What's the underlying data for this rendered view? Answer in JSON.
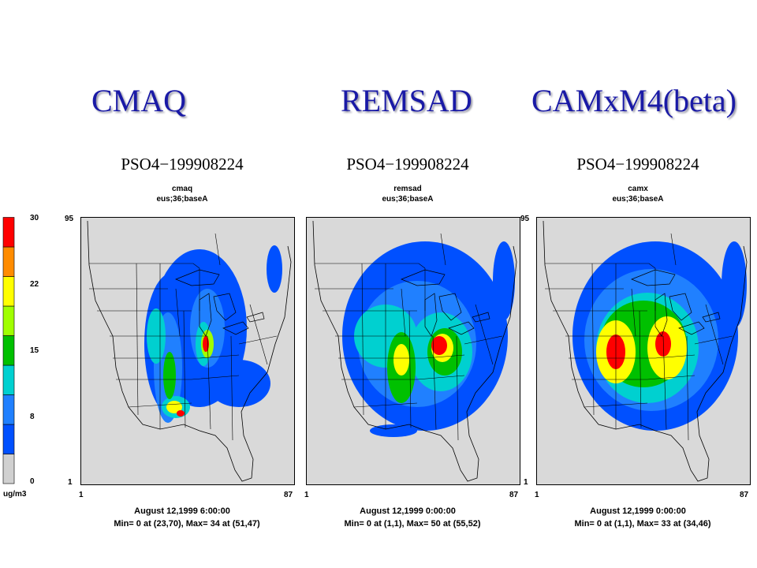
{
  "headings": [
    "CMAQ",
    "REMSAD",
    "CAMxM4(beta)"
  ],
  "legend": {
    "ticks": [
      "30",
      "22",
      "15",
      "8",
      "0"
    ],
    "units": "ug/m3",
    "colors": [
      "#d0d0d0",
      "#0050ff",
      "#2080ff",
      "#00d0d0",
      "#00c000",
      "#a0ff00",
      "#ffff00",
      "#ff8c00",
      "#ff0000"
    ]
  },
  "panels": [
    {
      "title": "PSO4−199908224",
      "model": "cmaq",
      "run": "eus;36;baseA",
      "y_top": "95",
      "y_bottom": "1",
      "x_left": "1",
      "x_right": "87",
      "date": "August 12,1999 6:00:00",
      "minmax": "Min=      0 at (23,70), Max=      34 at (51,47)"
    },
    {
      "title": "PSO4−199908224",
      "model": "remsad",
      "run": "eus;36;baseA",
      "y_top": "",
      "y_bottom": "",
      "x_left": "1",
      "x_right": "87",
      "date": "August 12,1999 0:00:00",
      "minmax": "Min=      0 at (1,1), Max=      50 at (55,52)"
    },
    {
      "title": "PSO4−199908224",
      "model": "camx",
      "run": "eus;36;baseA",
      "y_top": "95",
      "y_bottom": "1",
      "x_left": "1",
      "x_right": "87",
      "date": "August 12,1999 0:00:00",
      "minmax": "Min=      0 at (1,1), Max=      33 at (34,46)"
    }
  ],
  "chart_data": [
    {
      "type": "heatmap",
      "title": "PSO4−199908224",
      "subtitle": "cmaq eus;36;baseA",
      "x_range": [
        1,
        87
      ],
      "y_range": [
        1,
        95
      ],
      "color_range": [
        0,
        30
      ],
      "units": "ug/m3",
      "time": "August 12,1999 6:00:00",
      "min": {
        "value": 0,
        "cell": [
          23,
          70
        ]
      },
      "max": {
        "value": 34,
        "cell": [
          51,
          47
        ]
      }
    },
    {
      "type": "heatmap",
      "title": "PSO4−199908224",
      "subtitle": "remsad eus;36;baseA",
      "x_range": [
        1,
        87
      ],
      "y_range": [
        1,
        95
      ],
      "color_range": [
        0,
        30
      ],
      "units": "ug/m3",
      "time": "August 12,1999 0:00:00",
      "min": {
        "value": 0,
        "cell": [
          1,
          1
        ]
      },
      "max": {
        "value": 50,
        "cell": [
          55,
          52
        ]
      }
    },
    {
      "type": "heatmap",
      "title": "PSO4−199908224",
      "subtitle": "camx eus;36;baseA",
      "x_range": [
        1,
        87
      ],
      "y_range": [
        1,
        95
      ],
      "color_range": [
        0,
        30
      ],
      "units": "ug/m3",
      "time": "August 12,1999 0:00:00",
      "min": {
        "value": 0,
        "cell": [
          1,
          1
        ]
      },
      "max": {
        "value": 33,
        "cell": [
          34,
          46
        ]
      }
    }
  ]
}
